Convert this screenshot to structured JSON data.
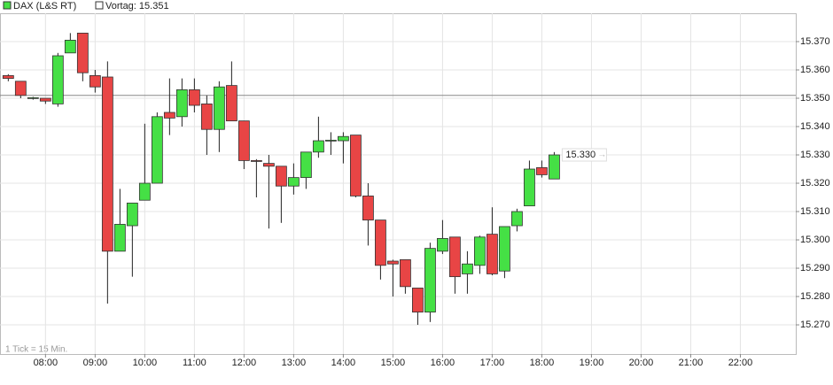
{
  "chart_data": {
    "type": "candlestick",
    "series": [
      {
        "name": "DAX (L&S RT)",
        "up_color": "#45e045",
        "down_color": "#e84545",
        "x": [
          "07:15",
          "07:30",
          "07:45",
          "08:00",
          "08:15",
          "08:30",
          "08:45",
          "09:00",
          "09:15",
          "09:30",
          "09:45",
          "10:00",
          "10:15",
          "10:30",
          "10:45",
          "11:00",
          "11:15",
          "11:30",
          "11:45",
          "12:00",
          "12:15",
          "12:30",
          "12:45",
          "13:00",
          "13:15",
          "13:30",
          "13:45",
          "14:00",
          "14:15",
          "14:30",
          "14:45",
          "15:00",
          "15:15",
          "15:30",
          "15:45",
          "16:00",
          "16:15",
          "16:30",
          "16:45",
          "17:00",
          "17:15",
          "17:30",
          "17:45",
          "18:00",
          "18:15"
        ],
        "open": [
          15358,
          15356,
          15350,
          15350,
          15348,
          15366,
          15373,
          15358,
          15357.5,
          15296,
          15305,
          15314,
          15320,
          15345,
          15343.5,
          15353,
          15348,
          15339,
          15354.5,
          15342,
          15328,
          15327,
          15326,
          15319,
          15322,
          15331,
          15335,
          15335,
          15337,
          15315.5,
          15307,
          15292.5,
          15293,
          15283,
          15274.5,
          15296,
          15301,
          15288,
          15291,
          15302,
          15289,
          15305,
          15312,
          15325.5,
          15321.5
        ],
        "high": [
          15358.5,
          15356,
          15350.5,
          15350,
          15366,
          15373,
          15373,
          15360,
          15363,
          15318,
          15313,
          15341,
          15345,
          15357,
          15357,
          15357,
          15351,
          15356,
          15363,
          15342,
          15328.5,
          15330,
          15326,
          15327,
          15331,
          15343.5,
          15338,
          15338,
          15337,
          15320,
          15307,
          15293,
          15293,
          15283,
          15299,
          15307,
          15301,
          15296,
          15301.5,
          15311.5,
          15304.7,
          15311,
          15328,
          15328,
          15331
        ],
        "low": [
          15356,
          15350,
          15349.5,
          15348,
          15347,
          15366,
          15356,
          15352,
          15277.5,
          15296,
          15287,
          15314,
          15320,
          15337,
          15340,
          15345,
          15330,
          15331,
          15342,
          15325,
          15315,
          15304,
          15306,
          15316,
          15318,
          15329,
          15330,
          15327,
          15315,
          15298,
          15286,
          15280,
          15281,
          15270,
          15271,
          15295,
          15281,
          15281,
          15288,
          15287.5,
          15286.5,
          15303,
          15312,
          15322,
          15321.5
        ],
        "close": [
          15357,
          15351,
          15350.2,
          15349,
          15365,
          15370.5,
          15359,
          15354,
          15296,
          15305.5,
          15313,
          15320,
          15343.5,
          15343,
          15353,
          15347.5,
          15339,
          15354,
          15342,
          15328,
          15327.7,
          15326,
          15319,
          15322,
          15331,
          15335,
          15335.2,
          15336.5,
          15315.5,
          15307,
          15291,
          15291.5,
          15283.5,
          15274.5,
          15297,
          15300.5,
          15287,
          15291.5,
          15301,
          15288,
          15304.7,
          15310,
          15325,
          15323,
          15330
        ]
      }
    ],
    "reference": {
      "label": "Vortag: 15.351",
      "value": 15351,
      "color": "#888888"
    },
    "last_price": {
      "value": 15330,
      "label": "15.330"
    },
    "note": "1 Tick = 15 Min.",
    "xlim": [
      "07:05",
      "23:07"
    ],
    "xticks": [
      "08:00",
      "09:00",
      "10:00",
      "11:00",
      "12:00",
      "13:00",
      "14:00",
      "15:00",
      "16:00",
      "17:00",
      "18:00",
      "19:00",
      "20:00",
      "21:00",
      "22:00"
    ],
    "ylim": [
      15259.7,
      15380
    ],
    "yticks": [
      {
        "value": 15270,
        "label": "15.270"
      },
      {
        "value": 15280,
        "label": "15.280"
      },
      {
        "value": 15290,
        "label": "15.290"
      },
      {
        "value": 15300,
        "label": "15.300"
      },
      {
        "value": 15310,
        "label": "15.310"
      },
      {
        "value": 15320,
        "label": "15.320"
      },
      {
        "value": 15330,
        "label": "15.330"
      },
      {
        "value": 15340,
        "label": "15.340"
      },
      {
        "value": 15350,
        "label": "15.350"
      },
      {
        "value": 15360,
        "label": "15.360"
      },
      {
        "value": 15370,
        "label": "15.370"
      }
    ],
    "grid": true
  }
}
